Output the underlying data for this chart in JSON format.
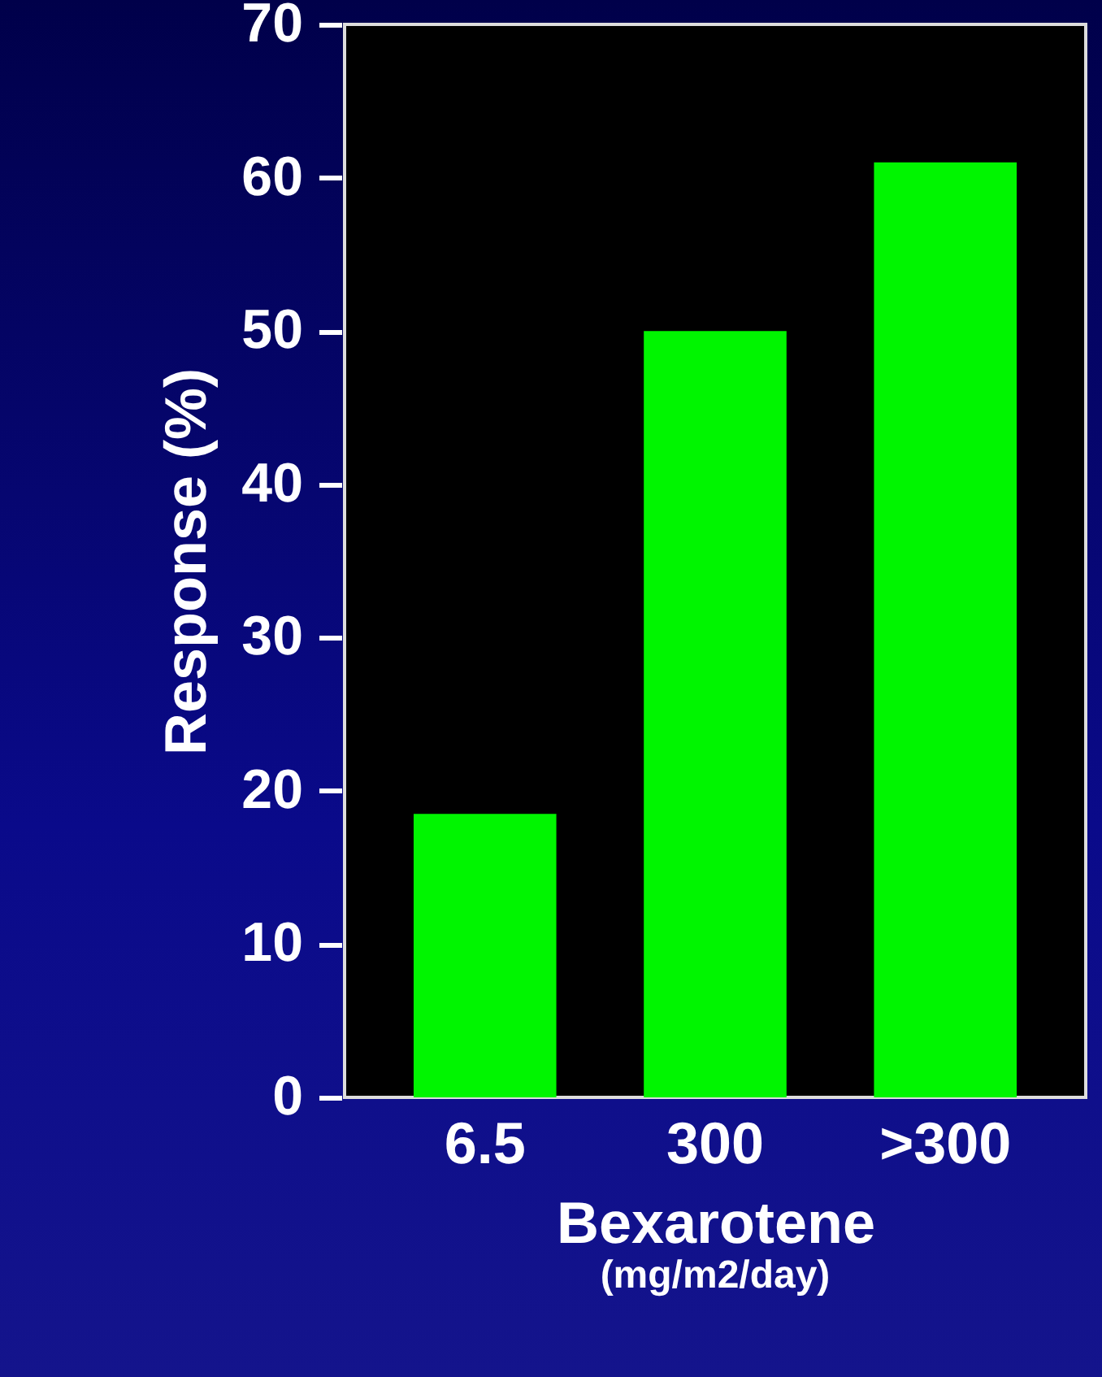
{
  "chart_data": {
    "type": "bar",
    "xlabel": "Bexarotene",
    "ylabel": "Response (%)",
    "annotations": [
      "(mg/m2/day)"
    ],
    "categories": [
      "6.5",
      "300",
      ">300"
    ],
    "values": [
      18.5,
      50,
      61
    ],
    "color": "#00f500",
    "ylim": [
      0,
      70
    ],
    "yticks": [
      0,
      10,
      20,
      30,
      40,
      50,
      60,
      70
    ],
    "grid": false
  }
}
